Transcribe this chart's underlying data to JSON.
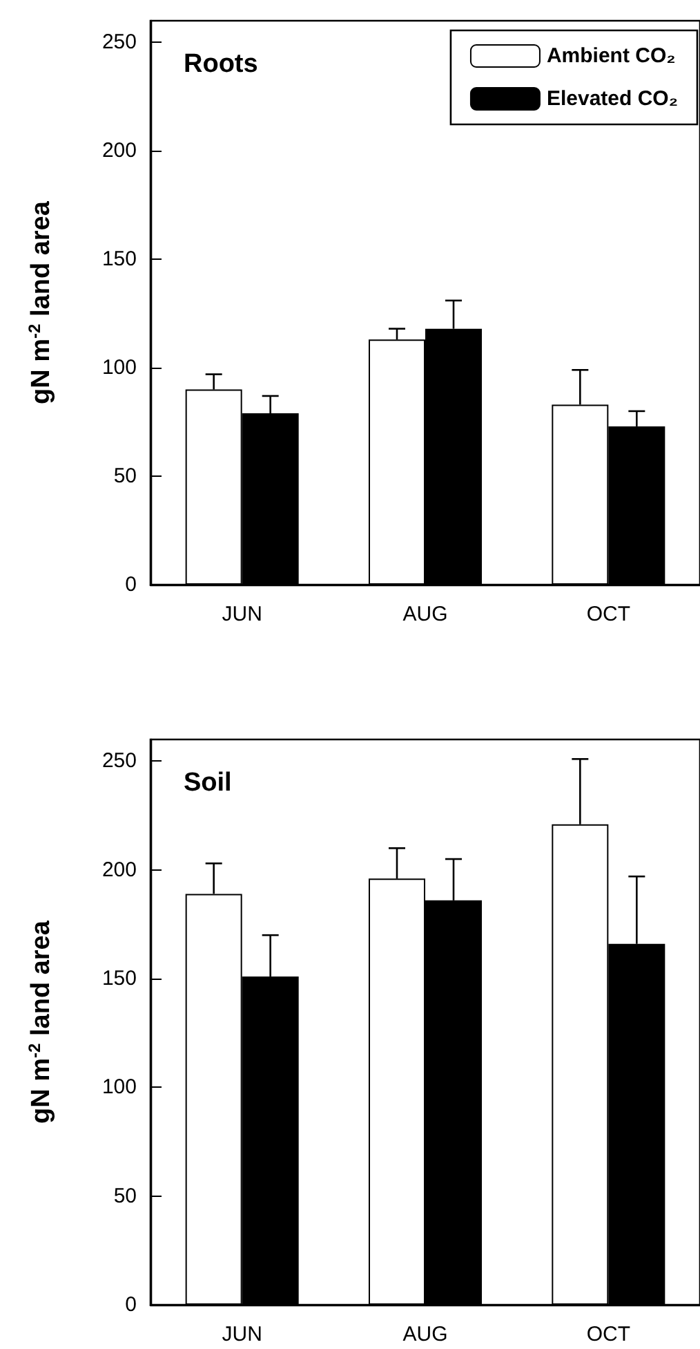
{
  "chart_data": [
    {
      "type": "bar",
      "title": "Roots",
      "ylabel": "gN m$^{-2}$ land area",
      "categories": [
        "JUN",
        "AUG",
        "OCT"
      ],
      "ylim": [
        0,
        260
      ],
      "yticks": [
        0,
        50,
        100,
        150,
        200,
        250
      ],
      "grid": false,
      "legend": "top right",
      "series": [
        {
          "name": "Ambient CO₂",
          "color": "#ffffff",
          "values": [
            90,
            113,
            83
          ],
          "errors": [
            [
              90,
              97
            ],
            [
              113,
              118
            ],
            [
              83,
              99
            ]
          ]
        },
        {
          "name": "Elevated CO₂",
          "color": "#000000",
          "values": [
            79,
            118,
            73
          ],
          "errors": [
            [
              79,
              87
            ],
            [
              118,
              131
            ],
            [
              73,
              80
            ]
          ]
        }
      ]
    },
    {
      "type": "bar",
      "title": "Soil",
      "ylabel": "gN m$^{-2}$ land area",
      "categories": [
        "JUN",
        "AUG",
        "OCT"
      ],
      "ylim": [
        0,
        260
      ],
      "yticks": [
        0,
        50,
        100,
        150,
        200,
        250
      ],
      "grid": false,
      "legend": false,
      "series": [
        {
          "color": "#ffffff",
          "values": [
            189,
            196,
            221
          ],
          "errors": [
            [
              189,
              203
            ],
            [
              196,
              210
            ],
            [
              221,
              251
            ]
          ]
        },
        {
          "color": "#000000",
          "values": [
            151,
            186,
            166
          ],
          "errors": [
            [
              151,
              170
            ],
            [
              186,
              205
            ],
            [
              166,
              197
            ]
          ]
        }
      ]
    }
  ]
}
